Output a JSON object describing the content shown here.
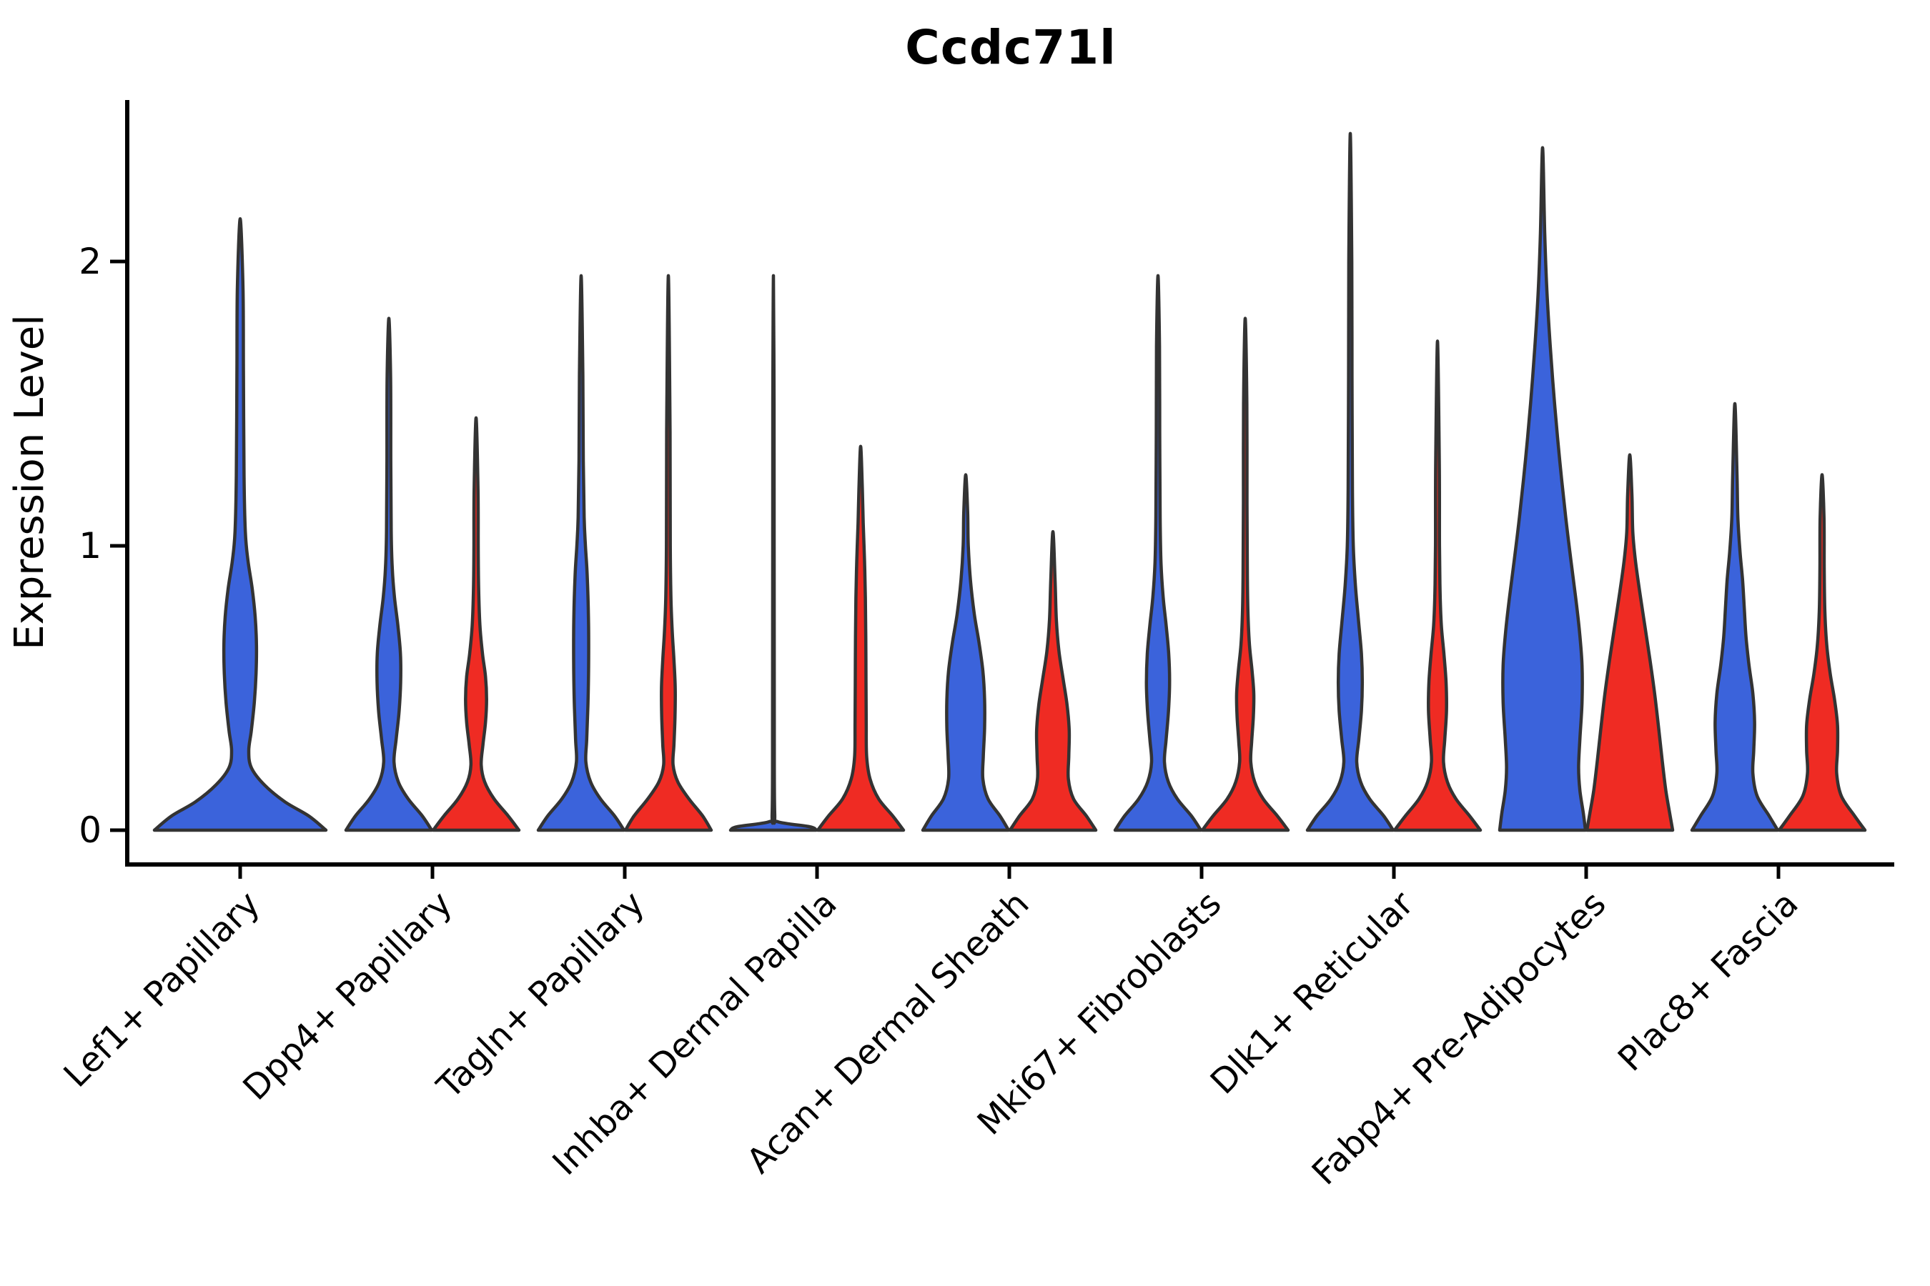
{
  "title": "Ccdc71l",
  "y_axis": {
    "label": "Expression Level",
    "ticks": [
      "0",
      "1",
      "2"
    ],
    "tick_values": [
      0,
      1,
      2
    ]
  },
  "colors": {
    "blue": "#3B63DB",
    "red": "#EF2B23",
    "outline": "#333333",
    "axis": "#000000",
    "background": "#ffffff"
  },
  "chart_data": {
    "type": "violin",
    "title": "Ccdc71l",
    "xlabel": "",
    "ylabel": "Expression Level",
    "yticks": [
      0,
      1,
      2
    ],
    "ylim": [
      -0.08,
      2.57
    ],
    "grid": false,
    "legend": "none",
    "categories": [
      "Lef1+ Papillary",
      "Dpp4+ Papillary",
      "Tagln+ Papillary",
      "Inhba+ Dermal Papilla",
      "Acan+ Dermal Sheath",
      "Mki67+ Fibroblasts",
      "Dlk1+ Reticular",
      "Fabp4+ Pre-Adipocytes",
      "Plac8+ Fascia"
    ],
    "series": [
      {
        "name": "blue",
        "color": "#3B63DB",
        "max_expression": [
          2.15,
          1.8,
          1.95,
          1.95,
          1.25,
          1.95,
          2.45,
          2.4,
          1.5
        ]
      },
      {
        "name": "red",
        "color": "#EF2B23",
        "max_expression": [
          null,
          1.45,
          1.95,
          1.35,
          1.05,
          1.8,
          1.72,
          1.32,
          1.25
        ]
      }
    ],
    "violins": [
      {
        "category": "Lef1+ Papillary",
        "group": "blue",
        "width": "full",
        "max": 2.15,
        "profile": [
          [
            0,
            1.0
          ],
          [
            0.05,
            0.8
          ],
          [
            0.1,
            0.52
          ],
          [
            0.16,
            0.28
          ],
          [
            0.22,
            0.13
          ],
          [
            0.28,
            0.1
          ],
          [
            0.35,
            0.13
          ],
          [
            0.45,
            0.165
          ],
          [
            0.55,
            0.185
          ],
          [
            0.65,
            0.19
          ],
          [
            0.75,
            0.175
          ],
          [
            0.85,
            0.14
          ],
          [
            0.95,
            0.09
          ],
          [
            1.05,
            0.06
          ],
          [
            1.25,
            0.045
          ],
          [
            1.6,
            0.038
          ],
          [
            1.9,
            0.033
          ],
          [
            2.15,
            0
          ]
        ]
      },
      {
        "category": "Dpp4+ Papillary",
        "group": "blue",
        "width": "half",
        "max": 1.8,
        "profile": [
          [
            0,
            1.0
          ],
          [
            0.05,
            0.78
          ],
          [
            0.11,
            0.45
          ],
          [
            0.17,
            0.22
          ],
          [
            0.24,
            0.12
          ],
          [
            0.32,
            0.17
          ],
          [
            0.42,
            0.24
          ],
          [
            0.52,
            0.275
          ],
          [
            0.62,
            0.27
          ],
          [
            0.72,
            0.21
          ],
          [
            0.82,
            0.13
          ],
          [
            0.92,
            0.08
          ],
          [
            1.05,
            0.055
          ],
          [
            1.3,
            0.045
          ],
          [
            1.6,
            0.04
          ],
          [
            1.8,
            0
          ]
        ]
      },
      {
        "category": "Dpp4+ Papillary",
        "group": "red",
        "width": "half",
        "max": 1.45,
        "profile": [
          [
            0,
            1.0
          ],
          [
            0.05,
            0.75
          ],
          [
            0.11,
            0.42
          ],
          [
            0.17,
            0.2
          ],
          [
            0.23,
            0.12
          ],
          [
            0.3,
            0.16
          ],
          [
            0.38,
            0.22
          ],
          [
            0.46,
            0.245
          ],
          [
            0.54,
            0.22
          ],
          [
            0.62,
            0.15
          ],
          [
            0.72,
            0.09
          ],
          [
            0.85,
            0.06
          ],
          [
            1.0,
            0.05
          ],
          [
            1.2,
            0.045
          ],
          [
            1.45,
            0
          ]
        ]
      },
      {
        "category": "Tagln+ Papillary",
        "group": "blue",
        "width": "half",
        "max": 1.95,
        "profile": [
          [
            0,
            1.0
          ],
          [
            0.05,
            0.78
          ],
          [
            0.11,
            0.45
          ],
          [
            0.17,
            0.22
          ],
          [
            0.24,
            0.11
          ],
          [
            0.32,
            0.13
          ],
          [
            0.45,
            0.16
          ],
          [
            0.6,
            0.175
          ],
          [
            0.75,
            0.17
          ],
          [
            0.9,
            0.14
          ],
          [
            1.0,
            0.1
          ],
          [
            1.1,
            0.07
          ],
          [
            1.3,
            0.05
          ],
          [
            1.6,
            0.04
          ],
          [
            1.95,
            0
          ]
        ]
      },
      {
        "category": "Tagln+ Papillary",
        "group": "red",
        "width": "half",
        "max": 1.95,
        "profile": [
          [
            0,
            1.0
          ],
          [
            0.05,
            0.8
          ],
          [
            0.11,
            0.48
          ],
          [
            0.17,
            0.22
          ],
          [
            0.23,
            0.11
          ],
          [
            0.3,
            0.13
          ],
          [
            0.4,
            0.155
          ],
          [
            0.5,
            0.16
          ],
          [
            0.6,
            0.13
          ],
          [
            0.7,
            0.09
          ],
          [
            0.82,
            0.06
          ],
          [
            1.0,
            0.045
          ],
          [
            1.4,
            0.04
          ],
          [
            1.95,
            0
          ]
        ]
      },
      {
        "category": "Inhba+ Dermal Papilla",
        "group": "blue",
        "width": "half",
        "max": 1.95,
        "profile": [
          [
            0,
            1.0
          ],
          [
            0.012,
            0.85
          ],
          [
            0.03,
            0.1
          ],
          [
            0.06,
            0.03
          ],
          [
            0.4,
            0.02
          ],
          [
            1.0,
            0.017
          ],
          [
            1.5,
            0.015
          ],
          [
            1.95,
            0
          ]
        ]
      },
      {
        "category": "Inhba+ Dermal Papilla",
        "group": "red",
        "width": "half",
        "max": 1.35,
        "profile": [
          [
            0,
            1.0
          ],
          [
            0.05,
            0.75
          ],
          [
            0.11,
            0.42
          ],
          [
            0.18,
            0.22
          ],
          [
            0.26,
            0.14
          ],
          [
            0.38,
            0.13
          ],
          [
            0.52,
            0.125
          ],
          [
            0.68,
            0.12
          ],
          [
            0.82,
            0.11
          ],
          [
            0.95,
            0.09
          ],
          [
            1.08,
            0.06
          ],
          [
            1.2,
            0.04
          ],
          [
            1.35,
            0
          ]
        ]
      },
      {
        "category": "Acan+ Dermal Sheath",
        "group": "blue",
        "width": "half",
        "max": 1.25,
        "profile": [
          [
            0,
            1.0
          ],
          [
            0.05,
            0.8
          ],
          [
            0.11,
            0.52
          ],
          [
            0.18,
            0.4
          ],
          [
            0.26,
            0.41
          ],
          [
            0.36,
            0.44
          ],
          [
            0.46,
            0.44
          ],
          [
            0.56,
            0.4
          ],
          [
            0.66,
            0.31
          ],
          [
            0.76,
            0.2
          ],
          [
            0.88,
            0.11
          ],
          [
            1.0,
            0.06
          ],
          [
            1.12,
            0.045
          ],
          [
            1.25,
            0
          ]
        ]
      },
      {
        "category": "Acan+ Dermal Sheath",
        "group": "red",
        "width": "half",
        "max": 1.05,
        "profile": [
          [
            0,
            1.0
          ],
          [
            0.05,
            0.78
          ],
          [
            0.11,
            0.48
          ],
          [
            0.18,
            0.36
          ],
          [
            0.26,
            0.37
          ],
          [
            0.35,
            0.38
          ],
          [
            0.44,
            0.33
          ],
          [
            0.53,
            0.24
          ],
          [
            0.63,
            0.14
          ],
          [
            0.74,
            0.08
          ],
          [
            0.88,
            0.05
          ],
          [
            1.05,
            0
          ]
        ]
      },
      {
        "category": "Mki67+ Fibroblasts",
        "group": "blue",
        "width": "half",
        "max": 1.95,
        "profile": [
          [
            0,
            1.0
          ],
          [
            0.05,
            0.78
          ],
          [
            0.11,
            0.45
          ],
          [
            0.17,
            0.24
          ],
          [
            0.24,
            0.15
          ],
          [
            0.32,
            0.19
          ],
          [
            0.42,
            0.245
          ],
          [
            0.52,
            0.27
          ],
          [
            0.62,
            0.25
          ],
          [
            0.72,
            0.19
          ],
          [
            0.82,
            0.12
          ],
          [
            0.94,
            0.07
          ],
          [
            1.1,
            0.05
          ],
          [
            1.4,
            0.04
          ],
          [
            1.7,
            0.035
          ],
          [
            1.95,
            0
          ]
        ]
      },
      {
        "category": "Mki67+ Fibroblasts",
        "group": "red",
        "width": "half",
        "max": 1.8,
        "profile": [
          [
            0,
            1.0
          ],
          [
            0.05,
            0.75
          ],
          [
            0.11,
            0.42
          ],
          [
            0.17,
            0.22
          ],
          [
            0.24,
            0.13
          ],
          [
            0.31,
            0.15
          ],
          [
            0.4,
            0.19
          ],
          [
            0.48,
            0.2
          ],
          [
            0.56,
            0.16
          ],
          [
            0.65,
            0.1
          ],
          [
            0.76,
            0.065
          ],
          [
            0.9,
            0.05
          ],
          [
            1.15,
            0.042
          ],
          [
            1.5,
            0.038
          ],
          [
            1.8,
            0
          ]
        ]
      },
      {
        "category": "Dlk1+ Reticular",
        "group": "blue",
        "width": "half",
        "max": 2.45,
        "profile": [
          [
            0,
            1.0
          ],
          [
            0.05,
            0.78
          ],
          [
            0.11,
            0.45
          ],
          [
            0.17,
            0.24
          ],
          [
            0.24,
            0.15
          ],
          [
            0.32,
            0.2
          ],
          [
            0.42,
            0.26
          ],
          [
            0.52,
            0.28
          ],
          [
            0.62,
            0.26
          ],
          [
            0.74,
            0.19
          ],
          [
            0.86,
            0.12
          ],
          [
            1.0,
            0.07
          ],
          [
            1.2,
            0.05
          ],
          [
            1.6,
            0.04
          ],
          [
            2.0,
            0.035
          ],
          [
            2.45,
            0
          ]
        ]
      },
      {
        "category": "Dlk1+ Reticular",
        "group": "red",
        "width": "half",
        "max": 1.72,
        "profile": [
          [
            0,
            1.0
          ],
          [
            0.05,
            0.75
          ],
          [
            0.11,
            0.43
          ],
          [
            0.17,
            0.23
          ],
          [
            0.24,
            0.14
          ],
          [
            0.32,
            0.17
          ],
          [
            0.42,
            0.21
          ],
          [
            0.52,
            0.2
          ],
          [
            0.62,
            0.15
          ],
          [
            0.72,
            0.09
          ],
          [
            0.84,
            0.06
          ],
          [
            1.0,
            0.047
          ],
          [
            1.3,
            0.042
          ],
          [
            1.72,
            0
          ]
        ]
      },
      {
        "category": "Fabp4+ Pre-Adipocytes",
        "group": "blue",
        "width": "half",
        "max": 2.4,
        "profile": [
          [
            0,
            1.0
          ],
          [
            0.06,
            0.95
          ],
          [
            0.14,
            0.87
          ],
          [
            0.22,
            0.84
          ],
          [
            0.32,
            0.87
          ],
          [
            0.45,
            0.92
          ],
          [
            0.58,
            0.92
          ],
          [
            0.7,
            0.86
          ],
          [
            0.82,
            0.77
          ],
          [
            0.95,
            0.66
          ],
          [
            1.1,
            0.54
          ],
          [
            1.3,
            0.4
          ],
          [
            1.5,
            0.28
          ],
          [
            1.7,
            0.18
          ],
          [
            1.9,
            0.1
          ],
          [
            2.1,
            0.05
          ],
          [
            2.4,
            0
          ]
        ]
      },
      {
        "category": "Fabp4+ Pre-Adipocytes",
        "group": "red",
        "width": "half",
        "max": 1.32,
        "profile": [
          [
            0,
            1.0
          ],
          [
            0.06,
            0.93
          ],
          [
            0.14,
            0.84
          ],
          [
            0.24,
            0.76
          ],
          [
            0.35,
            0.68
          ],
          [
            0.48,
            0.58
          ],
          [
            0.6,
            0.47
          ],
          [
            0.72,
            0.35
          ],
          [
            0.84,
            0.23
          ],
          [
            0.95,
            0.13
          ],
          [
            1.05,
            0.07
          ],
          [
            1.18,
            0.05
          ],
          [
            1.32,
            0
          ]
        ]
      },
      {
        "category": "Plac8+ Fascia",
        "group": "blue",
        "width": "half",
        "max": 1.5,
        "profile": [
          [
            0,
            1.0
          ],
          [
            0.05,
            0.8
          ],
          [
            0.12,
            0.52
          ],
          [
            0.2,
            0.42
          ],
          [
            0.28,
            0.44
          ],
          [
            0.38,
            0.46
          ],
          [
            0.48,
            0.42
          ],
          [
            0.58,
            0.33
          ],
          [
            0.68,
            0.26
          ],
          [
            0.78,
            0.22
          ],
          [
            0.88,
            0.18
          ],
          [
            0.98,
            0.12
          ],
          [
            1.1,
            0.07
          ],
          [
            1.25,
            0.05
          ],
          [
            1.5,
            0
          ]
        ]
      },
      {
        "category": "Plac8+ Fascia",
        "group": "red",
        "width": "half",
        "max": 1.25,
        "profile": [
          [
            0,
            1.0
          ],
          [
            0.05,
            0.76
          ],
          [
            0.12,
            0.45
          ],
          [
            0.2,
            0.34
          ],
          [
            0.28,
            0.36
          ],
          [
            0.37,
            0.36
          ],
          [
            0.46,
            0.29
          ],
          [
            0.55,
            0.19
          ],
          [
            0.65,
            0.11
          ],
          [
            0.77,
            0.065
          ],
          [
            0.92,
            0.05
          ],
          [
            1.1,
            0.045
          ],
          [
            1.25,
            0
          ]
        ]
      }
    ]
  }
}
